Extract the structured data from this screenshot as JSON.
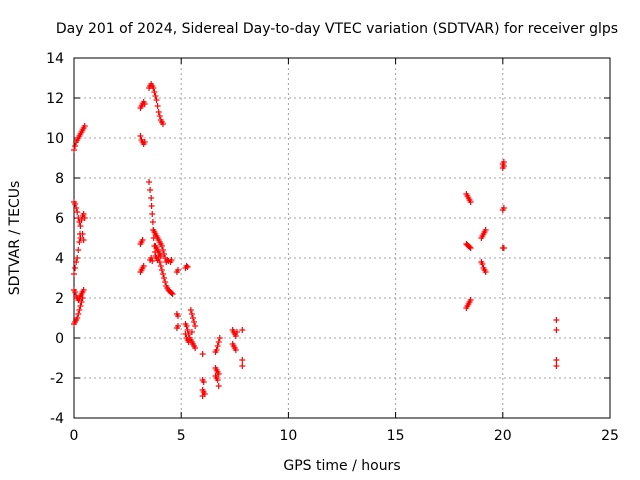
{
  "chart_data": {
    "type": "scatter",
    "title": "Day 201 of 2024, Sidereal Day-to-day VTEC variation (SDTVAR) for receiver glps",
    "xlabel": "GPS time / hours",
    "ylabel": "SDTVAR / TECUs",
    "xlim": [
      0,
      25
    ],
    "ylim": [
      -4,
      14
    ],
    "x_ticks": [
      0,
      5,
      10,
      15,
      20,
      25
    ],
    "y_ticks": [
      -4,
      -2,
      0,
      2,
      4,
      6,
      8,
      10,
      12,
      14
    ],
    "grid": true,
    "marker": "plus",
    "color": "#ff0000",
    "series": [
      {
        "name": "SDTVAR",
        "points": [
          [
            0.0,
            9.4
          ],
          [
            0.05,
            9.6
          ],
          [
            0.1,
            9.8
          ],
          [
            0.15,
            9.9
          ],
          [
            0.2,
            10.0
          ],
          [
            0.25,
            10.1
          ],
          [
            0.3,
            10.2
          ],
          [
            0.35,
            10.3
          ],
          [
            0.4,
            10.4
          ],
          [
            0.45,
            10.5
          ],
          [
            0.5,
            10.6
          ],
          [
            0.0,
            6.8
          ],
          [
            0.05,
            6.7
          ],
          [
            0.1,
            6.5
          ],
          [
            0.15,
            6.3
          ],
          [
            0.2,
            6.0
          ],
          [
            0.25,
            5.8
          ],
          [
            0.3,
            5.6
          ],
          [
            0.35,
            5.9
          ],
          [
            0.4,
            6.1
          ],
          [
            0.45,
            6.2
          ],
          [
            0.5,
            6.0
          ],
          [
            0.3,
            5.0
          ],
          [
            0.4,
            5.2
          ],
          [
            0.45,
            4.9
          ],
          [
            0.0,
            3.2
          ],
          [
            0.05,
            3.5
          ],
          [
            0.1,
            3.8
          ],
          [
            0.15,
            4.0
          ],
          [
            0.2,
            4.4
          ],
          [
            0.25,
            4.8
          ],
          [
            0.28,
            5.2
          ],
          [
            0.0,
            2.4
          ],
          [
            0.05,
            2.3
          ],
          [
            0.1,
            2.1
          ],
          [
            0.15,
            2.0
          ],
          [
            0.2,
            1.9
          ],
          [
            0.25,
            2.0
          ],
          [
            0.3,
            2.1
          ],
          [
            0.35,
            2.2
          ],
          [
            0.4,
            2.3
          ],
          [
            0.45,
            2.4
          ],
          [
            0.0,
            0.7
          ],
          [
            0.05,
            0.8
          ],
          [
            0.1,
            0.9
          ],
          [
            0.15,
            1.0
          ],
          [
            0.2,
            1.2
          ],
          [
            0.25,
            1.4
          ],
          [
            0.3,
            1.6
          ],
          [
            0.35,
            1.8
          ],
          [
            0.4,
            2.0
          ],
          [
            3.1,
            11.5
          ],
          [
            3.15,
            11.6
          ],
          [
            3.2,
            11.7
          ],
          [
            3.25,
            11.8
          ],
          [
            3.3,
            11.7
          ],
          [
            3.1,
            10.1
          ],
          [
            3.15,
            9.9
          ],
          [
            3.2,
            9.8
          ],
          [
            3.25,
            9.7
          ],
          [
            3.3,
            9.8
          ],
          [
            3.5,
            12.5
          ],
          [
            3.55,
            12.6
          ],
          [
            3.6,
            12.7
          ],
          [
            3.65,
            12.6
          ],
          [
            3.7,
            12.5
          ],
          [
            3.75,
            12.3
          ],
          [
            3.8,
            12.1
          ],
          [
            3.85,
            11.9
          ],
          [
            3.9,
            11.6
          ],
          [
            3.95,
            11.3
          ],
          [
            4.0,
            11.1
          ],
          [
            4.05,
            10.9
          ],
          [
            4.1,
            10.8
          ],
          [
            4.15,
            10.7
          ],
          [
            3.1,
            4.7
          ],
          [
            3.15,
            4.8
          ],
          [
            3.2,
            4.9
          ],
          [
            3.1,
            3.3
          ],
          [
            3.15,
            3.4
          ],
          [
            3.2,
            3.5
          ],
          [
            3.25,
            3.6
          ],
          [
            3.5,
            7.8
          ],
          [
            3.55,
            7.4
          ],
          [
            3.6,
            7.0
          ],
          [
            3.62,
            6.6
          ],
          [
            3.65,
            6.2
          ],
          [
            3.68,
            5.8
          ],
          [
            3.7,
            5.4
          ],
          [
            3.72,
            5.0
          ],
          [
            3.75,
            4.6
          ],
          [
            3.78,
            4.3
          ],
          [
            3.8,
            4.1
          ],
          [
            3.85,
            4.0
          ],
          [
            3.9,
            3.9
          ],
          [
            3.95,
            4.0
          ],
          [
            3.55,
            3.9
          ],
          [
            3.6,
            4.0
          ],
          [
            3.65,
            3.85
          ],
          [
            3.7,
            5.4
          ],
          [
            3.75,
            5.3
          ],
          [
            3.8,
            5.2
          ],
          [
            3.85,
            5.1
          ],
          [
            3.9,
            5.0
          ],
          [
            3.95,
            4.9
          ],
          [
            4.0,
            4.8
          ],
          [
            4.05,
            4.7
          ],
          [
            4.1,
            4.6
          ],
          [
            4.15,
            4.4
          ],
          [
            4.2,
            4.2
          ],
          [
            4.25,
            4.0
          ],
          [
            3.8,
            4.6
          ],
          [
            3.85,
            4.5
          ],
          [
            3.9,
            4.4
          ],
          [
            3.95,
            4.3
          ],
          [
            4.0,
            4.2
          ],
          [
            4.05,
            4.1
          ],
          [
            4.0,
            3.8
          ],
          [
            4.05,
            3.6
          ],
          [
            4.1,
            3.4
          ],
          [
            4.15,
            3.2
          ],
          [
            4.2,
            3.0
          ],
          [
            4.25,
            2.8
          ],
          [
            4.3,
            2.6
          ],
          [
            4.35,
            2.5
          ],
          [
            4.4,
            2.4
          ],
          [
            4.45,
            2.35
          ],
          [
            4.5,
            2.3
          ],
          [
            4.55,
            2.25
          ],
          [
            4.6,
            2.2
          ],
          [
            4.3,
            3.8
          ],
          [
            4.35,
            3.9
          ],
          [
            4.4,
            3.85
          ],
          [
            4.5,
            3.8
          ],
          [
            4.55,
            3.9
          ],
          [
            4.8,
            3.3
          ],
          [
            4.85,
            3.4
          ],
          [
            5.2,
            3.5
          ],
          [
            5.25,
            3.6
          ],
          [
            5.3,
            3.55
          ],
          [
            4.8,
            1.2
          ],
          [
            4.85,
            1.1
          ],
          [
            4.8,
            0.5
          ],
          [
            4.85,
            0.6
          ],
          [
            5.2,
            0.7
          ],
          [
            5.25,
            0.6
          ],
          [
            5.3,
            0.4
          ],
          [
            5.35,
            0.2
          ],
          [
            5.4,
            0.0
          ],
          [
            5.45,
            -0.1
          ],
          [
            5.5,
            -0.2
          ],
          [
            5.55,
            -0.3
          ],
          [
            5.6,
            -0.4
          ],
          [
            5.65,
            -0.5
          ],
          [
            5.2,
            0.2
          ],
          [
            5.25,
            0.0
          ],
          [
            5.3,
            -0.1
          ],
          [
            5.35,
            -0.2
          ],
          [
            5.45,
            1.4
          ],
          [
            5.5,
            1.2
          ],
          [
            5.55,
            1.0
          ],
          [
            5.6,
            0.8
          ],
          [
            5.65,
            0.6
          ],
          [
            5.5,
            0.3
          ],
          [
            6.0,
            -0.8
          ],
          [
            6.0,
            -2.1
          ],
          [
            6.05,
            -2.2
          ],
          [
            6.0,
            -2.6
          ],
          [
            6.05,
            -2.7
          ],
          [
            6.1,
            -2.8
          ],
          [
            6.0,
            -2.9
          ],
          [
            6.6,
            -0.7
          ],
          [
            6.65,
            -0.6
          ],
          [
            6.7,
            -0.4
          ],
          [
            6.75,
            -0.2
          ],
          [
            6.8,
            0.0
          ],
          [
            6.6,
            -1.5
          ],
          [
            6.65,
            -1.6
          ],
          [
            6.7,
            -1.7
          ],
          [
            6.75,
            -1.8
          ],
          [
            6.6,
            -1.9
          ],
          [
            6.65,
            -2.0
          ],
          [
            6.7,
            -2.1
          ],
          [
            6.75,
            -2.4
          ],
          [
            7.4,
            0.4
          ],
          [
            7.45,
            0.3
          ],
          [
            7.5,
            0.2
          ],
          [
            7.55,
            0.1
          ],
          [
            7.4,
            -0.3
          ],
          [
            7.45,
            -0.4
          ],
          [
            7.5,
            -0.5
          ],
          [
            7.55,
            -0.6
          ],
          [
            7.6,
            0.3
          ],
          [
            7.85,
            0.4
          ],
          [
            7.85,
            -1.1
          ],
          [
            7.85,
            -1.4
          ],
          [
            18.3,
            7.2
          ],
          [
            18.35,
            7.1
          ],
          [
            18.4,
            7.0
          ],
          [
            18.45,
            6.9
          ],
          [
            18.5,
            6.8
          ],
          [
            18.3,
            4.7
          ],
          [
            18.35,
            4.65
          ],
          [
            18.4,
            4.6
          ],
          [
            18.45,
            4.55
          ],
          [
            18.5,
            4.5
          ],
          [
            18.3,
            1.5
          ],
          [
            18.35,
            1.6
          ],
          [
            18.4,
            1.7
          ],
          [
            18.45,
            1.8
          ],
          [
            18.5,
            1.9
          ],
          [
            19.0,
            5.0
          ],
          [
            19.05,
            5.1
          ],
          [
            19.1,
            5.2
          ],
          [
            19.15,
            5.3
          ],
          [
            19.2,
            5.4
          ],
          [
            19.0,
            3.8
          ],
          [
            19.05,
            3.7
          ],
          [
            19.1,
            3.5
          ],
          [
            19.15,
            3.4
          ],
          [
            19.2,
            3.3
          ],
          [
            20.0,
            8.5
          ],
          [
            20.05,
            8.6
          ],
          [
            20.0,
            8.7
          ],
          [
            20.05,
            8.8
          ],
          [
            20.0,
            6.4
          ],
          [
            20.05,
            6.5
          ],
          [
            20.0,
            4.5
          ],
          [
            20.05,
            4.5
          ],
          [
            22.5,
            0.9
          ],
          [
            22.5,
            0.4
          ],
          [
            22.5,
            -1.1
          ],
          [
            22.5,
            -1.4
          ]
        ]
      }
    ]
  }
}
